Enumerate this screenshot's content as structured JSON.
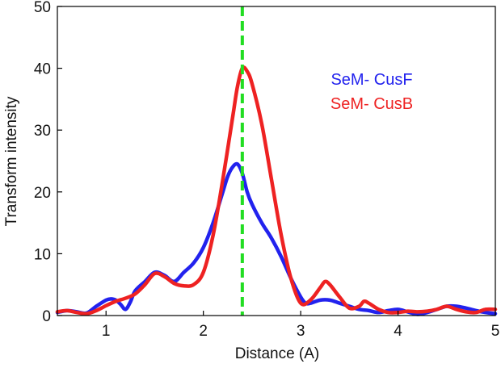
{
  "chart_data": {
    "type": "line",
    "xlabel": "Distance (A)",
    "ylabel": "Transform intensity",
    "xlim": [
      0.5,
      5
    ],
    "ylim": [
      0,
      50
    ],
    "xticks": [
      1,
      2,
      3,
      4,
      5
    ],
    "yticks": [
      0,
      10,
      20,
      30,
      40,
      50
    ],
    "grid": false,
    "legend_placement": "top-right",
    "reference_line": {
      "x": 2.4,
      "color": "#22dd22",
      "style": "dashed"
    },
    "series": [
      {
        "name": "SeM- CusF",
        "color": "#2222ee",
        "x": [
          0.5,
          0.6,
          0.7,
          0.8,
          0.9,
          1.0,
          1.05,
          1.1,
          1.15,
          1.2,
          1.25,
          1.3,
          1.4,
          1.5,
          1.6,
          1.7,
          1.8,
          1.9,
          2.0,
          2.1,
          2.2,
          2.25,
          2.3,
          2.35,
          2.4,
          2.45,
          2.5,
          2.6,
          2.7,
          2.8,
          2.9,
          3.0,
          3.05,
          3.1,
          3.2,
          3.3,
          3.4,
          3.5,
          3.6,
          3.7,
          3.8,
          3.9,
          4.0,
          4.1,
          4.2,
          4.3,
          4.4,
          4.5,
          4.6,
          4.7,
          4.8,
          4.9,
          5.0
        ],
        "y": [
          0.5,
          0.8,
          0.6,
          0.4,
          1.5,
          2.5,
          2.7,
          2.5,
          1.8,
          1.0,
          2.2,
          4.0,
          5.5,
          7.0,
          6.5,
          5.5,
          7.0,
          8.5,
          11.0,
          15.0,
          20.0,
          22.5,
          24.0,
          24.5,
          23.0,
          20.0,
          18.0,
          15.0,
          12.5,
          9.5,
          6.0,
          3.0,
          2.0,
          2.0,
          2.5,
          2.5,
          2.0,
          1.5,
          1.0,
          0.8,
          0.5,
          0.8,
          1.0,
          0.6,
          0.2,
          0.5,
          1.0,
          1.5,
          1.5,
          1.2,
          0.8,
          0.5,
          0.3
        ]
      },
      {
        "name": "SeM- CusB",
        "color": "#ee2222",
        "x": [
          0.5,
          0.6,
          0.7,
          0.8,
          0.9,
          1.0,
          1.1,
          1.2,
          1.3,
          1.4,
          1.5,
          1.6,
          1.7,
          1.8,
          1.9,
          2.0,
          2.1,
          2.2,
          2.3,
          2.35,
          2.4,
          2.45,
          2.5,
          2.6,
          2.7,
          2.8,
          2.9,
          3.0,
          3.1,
          3.2,
          3.25,
          3.3,
          3.4,
          3.5,
          3.6,
          3.65,
          3.7,
          3.8,
          3.9,
          4.0,
          4.1,
          4.2,
          4.3,
          4.4,
          4.5,
          4.6,
          4.7,
          4.8,
          4.9,
          5.0
        ],
        "y": [
          0.6,
          0.8,
          0.5,
          0.3,
          0.8,
          1.6,
          2.3,
          2.8,
          3.5,
          5.0,
          6.8,
          6.3,
          5.2,
          4.8,
          5.0,
          7.0,
          13.0,
          22.0,
          32.0,
          37.0,
          40.0,
          39.5,
          37.5,
          31.0,
          22.0,
          13.0,
          6.0,
          2.0,
          2.5,
          4.5,
          5.5,
          5.0,
          3.0,
          1.2,
          1.5,
          2.3,
          2.0,
          1.0,
          0.5,
          0.5,
          0.7,
          0.6,
          0.7,
          1.0,
          1.5,
          1.0,
          0.6,
          0.5,
          1.0,
          1.0
        ]
      }
    ]
  }
}
